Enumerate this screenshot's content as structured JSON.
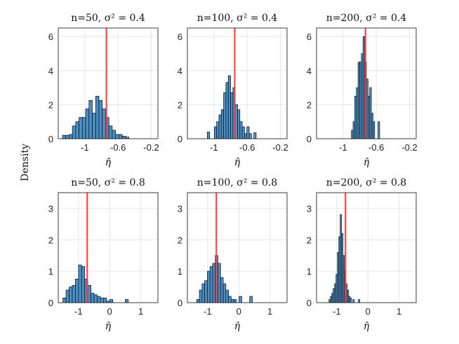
{
  "figure": {
    "ylabel": "Density"
  },
  "chart_data": [
    {
      "type": "bar",
      "panel": "n50-s04",
      "title": "n=50, σ² = 0.4",
      "xlabel": "η̂",
      "xlim": [
        -1.32,
        -0.12
      ],
      "ylim": [
        0,
        6.5
      ],
      "xticks": [
        -1,
        -0.6,
        -0.2
      ],
      "xtick_labels": [
        "-1",
        "-0.6",
        "-0.2"
      ],
      "yticks": [
        0,
        2,
        4,
        6
      ],
      "ytick_labels": [
        "0",
        "2",
        "4",
        "6"
      ],
      "bin_start": -1.27,
      "bin_width": 0.04,
      "values": [
        0.2,
        0.2,
        0.25,
        0.75,
        1.0,
        1.25,
        1.25,
        1.75,
        2.25,
        1.5,
        2.5,
        2.25,
        1.75,
        1.25,
        0.75,
        0.5,
        0.25,
        0.25,
        0.15,
        0.1
      ],
      "reference_x": -0.74
    },
    {
      "type": "bar",
      "panel": "n100-s04",
      "title": "n=100, σ² = 0.4",
      "xlabel": "η̂",
      "xlim": [
        -1.32,
        -0.12
      ],
      "ylim": [
        0,
        6.5
      ],
      "xticks": [
        -1,
        -0.6,
        -0.2
      ],
      "xtick_labels": [
        "-1",
        "-0.6",
        "-0.2"
      ],
      "yticks": [
        0,
        2,
        4,
        6
      ],
      "ytick_labels": [
        "0",
        "2",
        "4",
        "6"
      ],
      "bin_start": -1.08,
      "bin_width": 0.028,
      "values": [
        0.4,
        0,
        0,
        0.7,
        1.0,
        1.4,
        1.7,
        2.7,
        3.3,
        3.7,
        2.7,
        3.0,
        2.0,
        1.7,
        1.0,
        0.7,
        0.3,
        0.7,
        0.3,
        0,
        0.35
      ],
      "reference_x": -0.75
    },
    {
      "type": "bar",
      "panel": "n200-s04",
      "title": "n=200, σ² = 0.4",
      "xlabel": "η̂",
      "xlim": [
        -1.32,
        -0.12
      ],
      "ylim": [
        0,
        6.5
      ],
      "xticks": [
        -1,
        -0.6,
        -0.2
      ],
      "xtick_labels": [
        "-1",
        "-0.6",
        "-0.2"
      ],
      "yticks": [
        0,
        2,
        4,
        6
      ],
      "ytick_labels": [
        "0",
        "2",
        "4",
        "6"
      ],
      "bin_start": -0.9,
      "bin_width": 0.02,
      "values": [
        0.5,
        1.0,
        2.5,
        3.0,
        4.5,
        4.5,
        5.0,
        6.0,
        4.5,
        3.5,
        2.5,
        3.0,
        1.5,
        1.0,
        0,
        0,
        1.0
      ],
      "reference_x": -0.73
    },
    {
      "type": "bar",
      "panel": "n50-s08",
      "title": "n=50, σ² = 0.8",
      "xlabel": "η̂",
      "xlim": [
        -1.65,
        1.55
      ],
      "ylim": [
        0,
        3.5
      ],
      "xticks": [
        -1,
        0,
        1
      ],
      "xtick_labels": [
        "-1",
        "0",
        "1"
      ],
      "yticks": [
        0,
        1,
        2,
        3
      ],
      "ytick_labels": [
        "0",
        "1",
        "2",
        "3"
      ],
      "bin_start": -1.5,
      "bin_width": 0.1,
      "values": [
        0.15,
        0.4,
        0.5,
        0.55,
        0.75,
        1.2,
        1.15,
        0.75,
        0.55,
        0.3,
        0.25,
        0.2,
        0.15,
        0.15,
        0.05,
        0.1,
        0,
        0,
        0,
        0,
        0.1
      ],
      "reference_x": -0.72
    },
    {
      "type": "bar",
      "panel": "n100-s08",
      "title": "n=100, σ² = 0.8",
      "xlabel": "η̂",
      "xlim": [
        -1.65,
        1.55
      ],
      "ylim": [
        0,
        3.5
      ],
      "xticks": [
        -1,
        0,
        1
      ],
      "xtick_labels": [
        "-1",
        "0",
        "1"
      ],
      "yticks": [
        0,
        1,
        2,
        3
      ],
      "ytick_labels": [
        "0",
        "1",
        "2",
        "3"
      ],
      "bin_start": -1.35,
      "bin_width": 0.085,
      "values": [
        0.1,
        0.4,
        0.6,
        0.7,
        1.0,
        1.15,
        1.25,
        1.5,
        1.25,
        0.8,
        0.6,
        0.4,
        0.2,
        0.1,
        0.1,
        0,
        0.2,
        0,
        0,
        0,
        0.2
      ],
      "reference_x": -0.72
    },
    {
      "type": "bar",
      "panel": "n200-s08",
      "title": "n=200, σ² = 0.8",
      "xlabel": "η̂",
      "xlim": [
        -1.65,
        1.55
      ],
      "ylim": [
        0,
        3.5
      ],
      "xticks": [
        -1,
        0,
        1
      ],
      "xtick_labels": [
        "-1",
        "0",
        "1"
      ],
      "yticks": [
        0,
        1,
        2,
        3
      ],
      "ytick_labels": [
        "0",
        "1",
        "2",
        "3"
      ],
      "bin_start": -1.25,
      "bin_width": 0.045,
      "values": [
        0.1,
        0.2,
        0.3,
        0.45,
        0.6,
        0.9,
        1.6,
        2.1,
        2.8,
        2.2,
        1.5,
        1.0,
        0.6,
        0.4,
        0.2,
        0.15,
        0,
        0.1,
        0,
        0,
        0,
        0.1
      ],
      "reference_x": -0.72
    }
  ]
}
